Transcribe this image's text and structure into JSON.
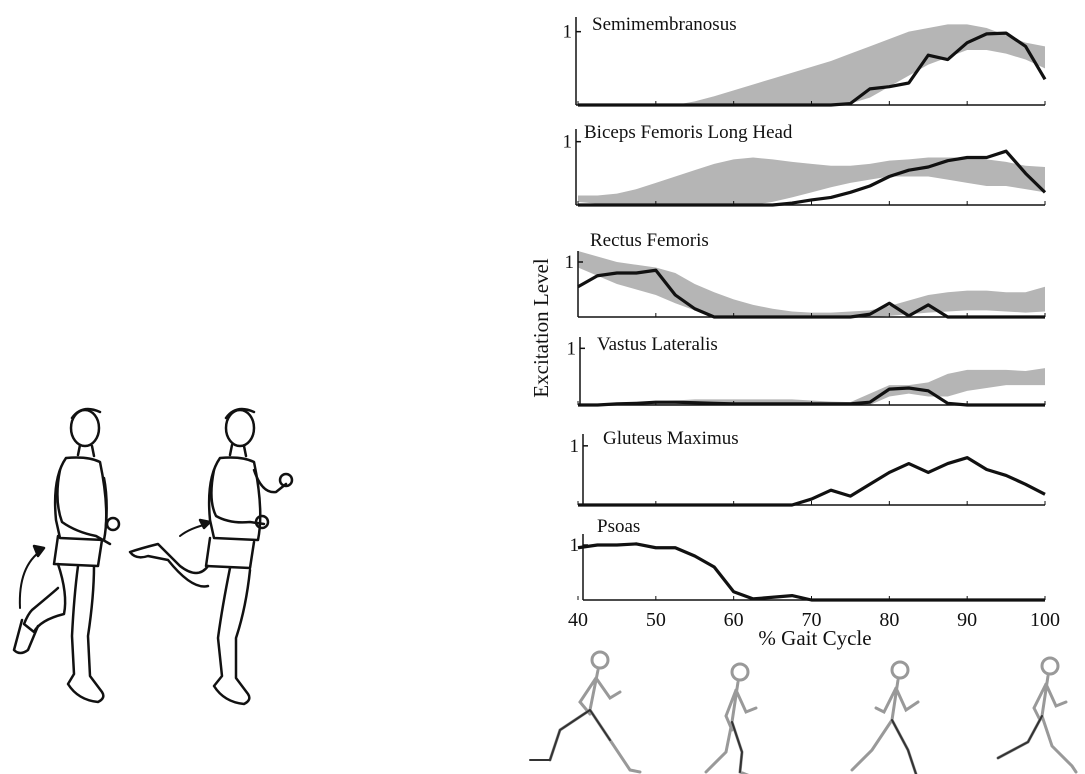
{
  "chart_data": {
    "type": "line",
    "ylabel": "Excitation Level",
    "xlabel": "% Gait Cycle",
    "x": [
      40,
      42.5,
      45,
      47.5,
      50,
      52.5,
      55,
      57.5,
      60,
      62.5,
      65,
      67.5,
      70,
      72.5,
      75,
      77.5,
      80,
      82.5,
      85,
      87.5,
      90,
      92.5,
      95,
      97.5,
      100
    ],
    "xlim": [
      40,
      100
    ],
    "xticks": [
      40,
      50,
      60,
      70,
      80,
      90,
      100
    ],
    "ylim": [
      0,
      1.2
    ],
    "yticks": [
      1
    ],
    "band_color": "#b5b5b5",
    "series": [
      {
        "name": "Semimembranosus",
        "color": "#111111",
        "values": [
          0,
          0,
          0,
          0,
          0,
          0,
          0,
          0,
          0,
          0,
          0,
          0,
          0,
          0,
          0.02,
          0.22,
          0.25,
          0.3,
          0.68,
          0.62,
          0.85,
          0.97,
          0.98,
          0.8,
          0.35
        ],
        "band": {
          "lower": [
            0,
            0,
            0,
            0,
            0,
            0,
            0,
            0,
            0,
            0,
            0,
            0,
            0,
            0,
            0.02,
            0.1,
            0.25,
            0.4,
            0.55,
            0.65,
            0.75,
            0.75,
            0.7,
            0.62,
            0.5
          ],
          "upper": [
            0,
            0,
            0,
            0,
            0,
            0,
            0.05,
            0.12,
            0.2,
            0.28,
            0.36,
            0.44,
            0.52,
            0.6,
            0.7,
            0.8,
            0.9,
            1.0,
            1.05,
            1.1,
            1.1,
            1.05,
            0.95,
            0.85,
            0.8
          ]
        }
      },
      {
        "name": "Biceps Femoris Long Head",
        "color": "#111111",
        "values": [
          0,
          0,
          0,
          0,
          0,
          0,
          0,
          0,
          0,
          0,
          0,
          0.03,
          0.08,
          0.12,
          0.2,
          0.3,
          0.45,
          0.55,
          0.6,
          0.7,
          0.75,
          0.75,
          0.85,
          0.5,
          0.2
        ],
        "band": {
          "lower": [
            0.05,
            0.02,
            0,
            0,
            0,
            0,
            0,
            0,
            0,
            0,
            0.05,
            0.12,
            0.2,
            0.28,
            0.35,
            0.4,
            0.45,
            0.45,
            0.45,
            0.4,
            0.35,
            0.3,
            0.3,
            0.25,
            0.2
          ],
          "upper": [
            0.15,
            0.15,
            0.18,
            0.25,
            0.35,
            0.45,
            0.55,
            0.65,
            0.72,
            0.75,
            0.72,
            0.68,
            0.65,
            0.62,
            0.62,
            0.65,
            0.7,
            0.72,
            0.75,
            0.75,
            0.75,
            0.72,
            0.68,
            0.62,
            0.6
          ]
        }
      },
      {
        "name": "Rectus Femoris",
        "color": "#111111",
        "values": [
          0.55,
          0.75,
          0.8,
          0.8,
          0.85,
          0.4,
          0.15,
          0,
          0,
          0,
          0,
          0,
          0,
          0,
          0,
          0.05,
          0.25,
          0.02,
          0.22,
          0,
          0,
          0,
          0,
          0,
          0
        ],
        "band": {
          "lower": [
            0.9,
            0.75,
            0.6,
            0.5,
            0.4,
            0.25,
            0.12,
            0.03,
            0,
            0,
            0,
            0,
            0,
            0,
            0,
            0,
            0.02,
            0.05,
            0.08,
            0.1,
            0.12,
            0.12,
            0.1,
            0.08,
            0.1
          ],
          "upper": [
            1.2,
            1.1,
            1.0,
            0.95,
            0.9,
            0.8,
            0.6,
            0.45,
            0.32,
            0.22,
            0.15,
            0.1,
            0.08,
            0.08,
            0.1,
            0.12,
            0.2,
            0.3,
            0.4,
            0.45,
            0.48,
            0.48,
            0.45,
            0.45,
            0.55
          ]
        }
      },
      {
        "name": "Vastus Lateralis",
        "color": "#111111",
        "values": [
          0,
          0,
          0.02,
          0.03,
          0.05,
          0.05,
          0.04,
          0.03,
          0.02,
          0.02,
          0.02,
          0.02,
          0.02,
          0.02,
          0.02,
          0.05,
          0.28,
          0.3,
          0.25,
          0.03,
          0,
          0,
          0,
          0,
          0
        ],
        "band": {
          "lower": [
            0,
            0,
            0,
            0,
            0,
            0,
            0,
            0,
            0,
            0,
            0,
            0,
            0,
            0,
            0,
            0,
            0.15,
            0.2,
            0.15,
            0.15,
            0.25,
            0.3,
            0.35,
            0.35,
            0.35
          ],
          "upper": [
            0,
            0,
            0.02,
            0.04,
            0.06,
            0.08,
            0.1,
            0.1,
            0.1,
            0.1,
            0.1,
            0.1,
            0.08,
            0.06,
            0.05,
            0.2,
            0.35,
            0.35,
            0.4,
            0.55,
            0.62,
            0.62,
            0.62,
            0.6,
            0.65
          ]
        }
      },
      {
        "name": "Gluteus Maximus",
        "color": "#111111",
        "values": [
          0,
          0,
          0,
          0,
          0,
          0,
          0,
          0,
          0,
          0,
          0,
          0,
          0.1,
          0.25,
          0.15,
          0.35,
          0.55,
          0.7,
          0.55,
          0.7,
          0.8,
          0.6,
          0.5,
          0.35,
          0.18
        ]
      },
      {
        "name": "Psoas",
        "color": "#111111",
        "values": [
          0.95,
          1.0,
          1.0,
          1.02,
          0.95,
          0.95,
          0.8,
          0.6,
          0.15,
          0.02,
          0.05,
          0.08,
          0,
          0,
          0,
          0,
          0,
          0,
          0,
          0,
          0,
          0,
          0,
          0,
          0
        ]
      }
    ]
  }
}
